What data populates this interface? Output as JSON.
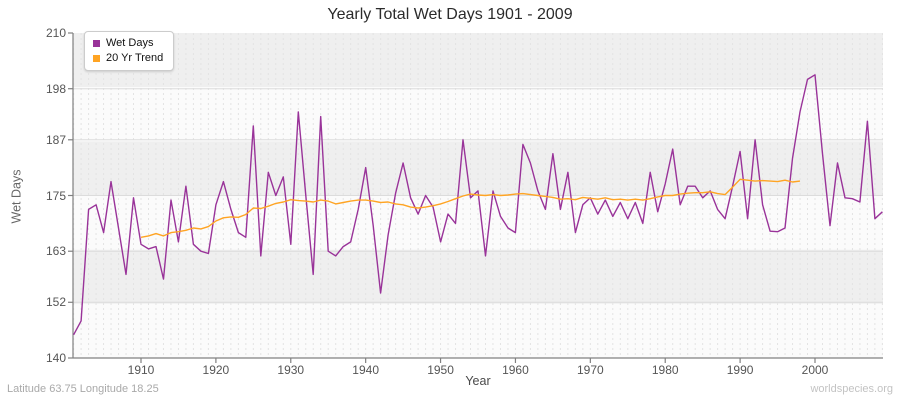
{
  "title": "Yearly Total Wet Days 1901 - 2009",
  "footer": {
    "left": "Latitude 63.75 Longitude 18.25",
    "right": "worldspecies.org"
  },
  "colors": {
    "wet_days_line": "#993399",
    "trend_line": "#FFA423",
    "band_gray": "#efefef",
    "band_white": "#fbfbfb",
    "grid_line": "#dcdcdc",
    "grid_dash": "#e3e3e3",
    "axis": "#808080",
    "tick_text": "#555555"
  },
  "chart_data": {
    "type": "line",
    "title": "Yearly Total Wet Days 1901 - 2009",
    "xlabel": "Year",
    "ylabel": "Wet Days",
    "x_range": [
      1901,
      2009
    ],
    "ylim": [
      140,
      210
    ],
    "y_ticks": [
      210,
      198,
      187,
      175,
      163,
      152,
      140
    ],
    "x_ticks": [
      1910,
      1920,
      1930,
      1940,
      1950,
      1960,
      1970,
      1980,
      1990,
      2000
    ],
    "grid": {
      "zebra_bands": true,
      "horizontal_lines": true,
      "vertical_dashed_yearly": true
    },
    "legend_position": "top-left",
    "series": [
      {
        "name": "Wet Days",
        "color": "#993399",
        "start_year": 1901,
        "values": [
          145,
          148,
          172,
          173,
          167,
          178,
          168,
          158,
          174.5,
          164.5,
          163.5,
          164,
          157,
          174,
          165,
          177,
          164.5,
          163,
          162.5,
          173,
          178,
          172,
          167,
          166,
          190,
          162,
          180,
          175,
          179,
          164.5,
          193,
          175,
          158,
          192,
          163,
          162,
          164,
          165,
          172,
          181,
          168.5,
          154,
          166.5,
          175.5,
          182,
          174.5,
          171,
          175,
          172.5,
          165,
          171,
          169,
          187,
          174.5,
          176,
          162,
          176,
          170.5,
          168,
          167,
          186,
          182,
          176,
          172,
          184,
          172,
          180,
          167,
          173,
          174.5,
          171,
          174,
          170.5,
          173.5,
          170,
          173.5,
          169,
          180,
          171.5,
          177.5,
          185,
          173,
          177,
          177,
          174.5,
          176,
          172,
          170,
          177,
          184.5,
          170,
          187,
          173,
          167.3,
          167.2,
          168,
          183,
          193,
          200,
          201,
          184,
          168.5,
          182,
          174.5,
          174.3,
          173.6,
          191,
          170,
          171.5
        ]
      },
      {
        "name": "20 Yr Trend",
        "color": "#FFA423",
        "start_year": 1910,
        "values": [
          166,
          166.3,
          166.8,
          166.3,
          167,
          167.2,
          167.5,
          168,
          167.8,
          168.3,
          169.5,
          170.2,
          170.4,
          170.3,
          170.9,
          172.3,
          172.2,
          172.7,
          173.3,
          173.6,
          174.1,
          173.9,
          173.8,
          173.6,
          174,
          173.8,
          173.2,
          173.5,
          173.8,
          174,
          174,
          173.8,
          173.5,
          173.6,
          173.2,
          173,
          172.5,
          172.3,
          172.5,
          172.8,
          173.2,
          173.7,
          174.3,
          174.9,
          175.3,
          175.1,
          175,
          175.2,
          175,
          175.1,
          175.3,
          175.4,
          175.2,
          175,
          174.8,
          174.6,
          174.2,
          174.3,
          174.1,
          174.6,
          174.4,
          174.2,
          174.5,
          174.1,
          174.2,
          174,
          174.2,
          174,
          174.3,
          174.7,
          175,
          175,
          175.3,
          175.5,
          175.6,
          175.6,
          175.8,
          175.4,
          175.2,
          176.8,
          178.5,
          178.3,
          178.1,
          178.2,
          178.1,
          178,
          178.3,
          177.9,
          178.1
        ]
      }
    ]
  }
}
